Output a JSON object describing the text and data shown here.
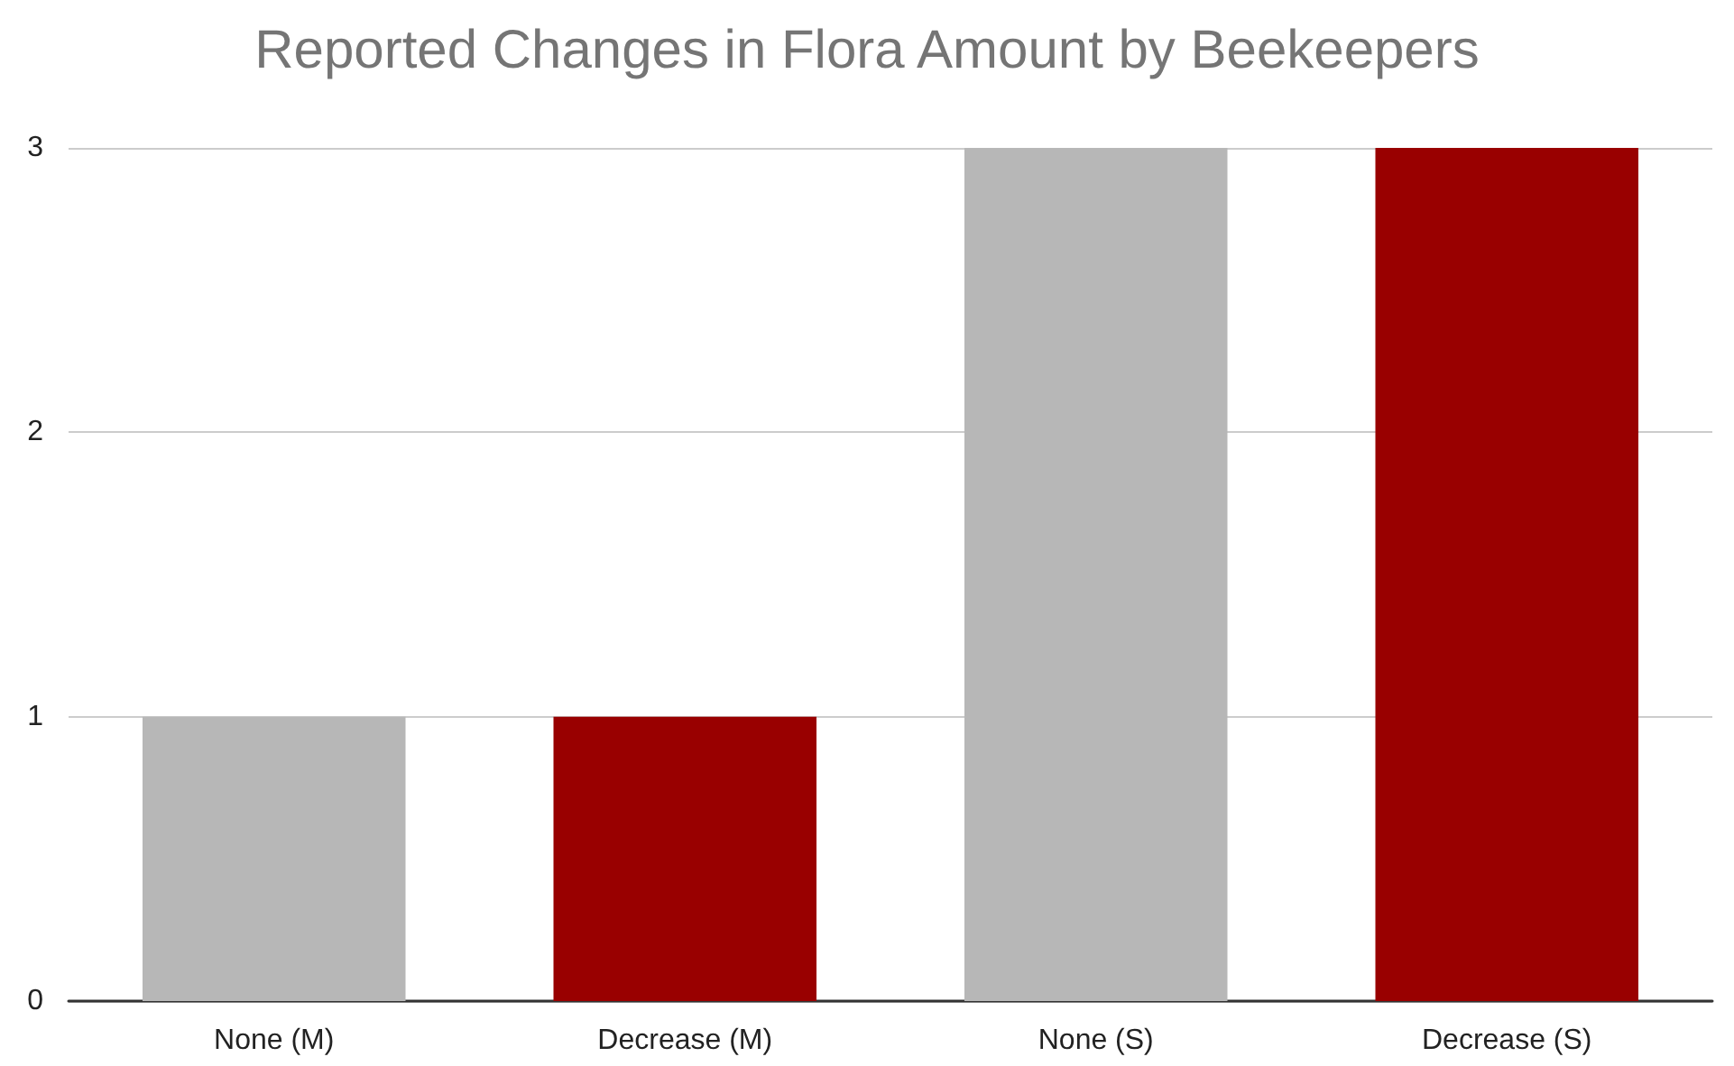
{
  "chart_data": {
    "type": "bar",
    "title": "Reported Changes in Flora Amount by Beekeepers",
    "categories": [
      "None (M)",
      "Decrease (M)",
      "None (S)",
      "Decrease (S)"
    ],
    "values": [
      1,
      1,
      3,
      3
    ],
    "colors": [
      "#b7b7b7",
      "#990000",
      "#b7b7b7",
      "#990000"
    ],
    "ylim": [
      0,
      3
    ],
    "yticks": [
      0,
      1,
      2,
      3
    ],
    "grid": "y"
  }
}
